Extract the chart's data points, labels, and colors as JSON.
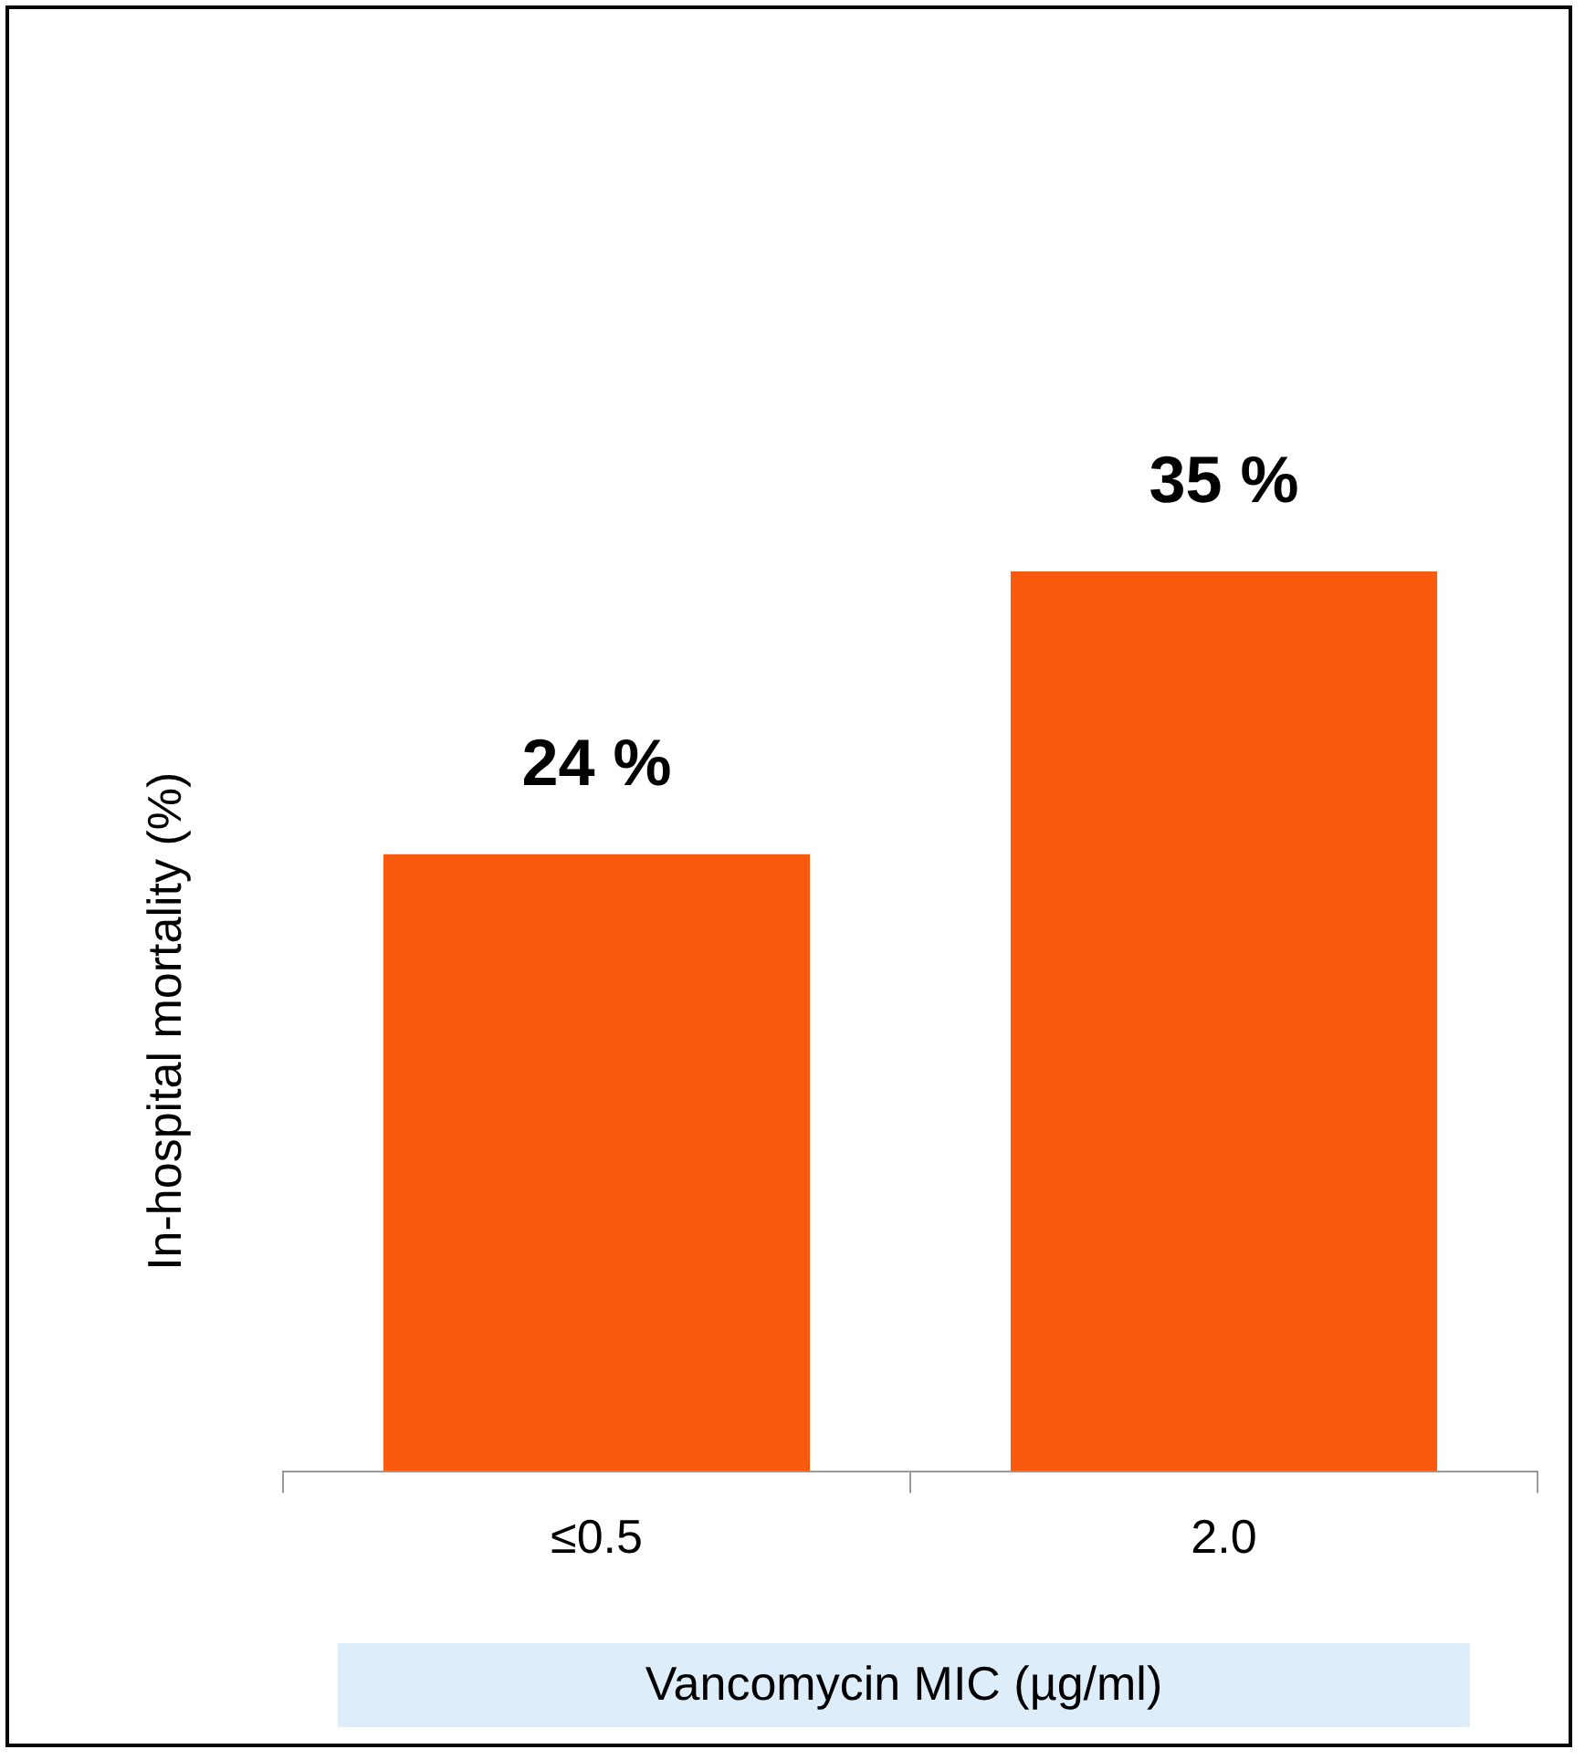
{
  "chart_data": {
    "type": "bar",
    "ylabel": "In-hospital mortality (%)",
    "xlabel": "Vancomycin MIC (µg/ml)",
    "categories": [
      "≤0.5",
      "2.0"
    ],
    "values": [
      24,
      35
    ],
    "value_labels": [
      "24 %",
      "35 %"
    ],
    "color": "#fa5a0e",
    "legend": false
  }
}
